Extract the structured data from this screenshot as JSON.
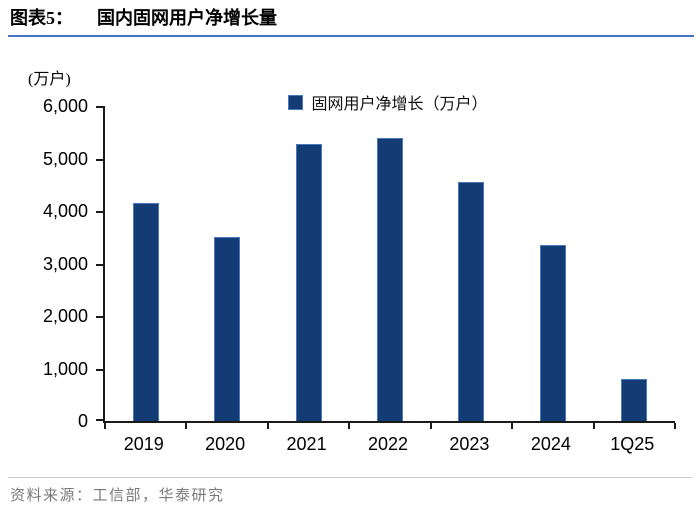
{
  "figure": {
    "label": "图表5：",
    "title": "国内固网用户净增长量"
  },
  "chart_data": {
    "type": "bar",
    "title": "国内固网用户净增长量",
    "unit_label": "(万户)",
    "legend": [
      "固网用户净增长（万户）"
    ],
    "legend_position": "top-center",
    "categories": [
      "2019",
      "2020",
      "2021",
      "2022",
      "2023",
      "2024",
      "1Q25"
    ],
    "values": [
      4150,
      3500,
      5270,
      5390,
      4560,
      3350,
      800
    ],
    "ylim": [
      0,
      6000
    ],
    "yticks": [
      0,
      1000,
      2000,
      3000,
      4000,
      5000,
      6000
    ],
    "ytick_labels": [
      "0",
      "1,000",
      "2,000",
      "3,000",
      "4,000",
      "5,000",
      "6,000"
    ],
    "grid": false,
    "bar_color": "#123C73",
    "bar_border_color": "#4A77BD",
    "axis_color": "#1A1A1A",
    "title_rule_color": "#4472C4"
  },
  "footer": {
    "source": "资料来源：工信部，华泰研究"
  }
}
